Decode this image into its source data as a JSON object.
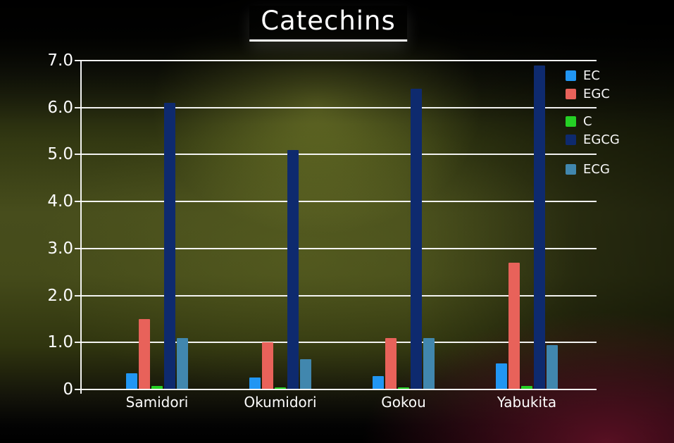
{
  "chart_data": {
    "type": "bar",
    "title": "Catechins",
    "categories": [
      "Samidori",
      "Okumidori",
      "Gokou",
      "Yabukita"
    ],
    "series": [
      {
        "name": "EC",
        "color": "#2196f3",
        "values": [
          0.35,
          0.25,
          0.28,
          0.55
        ]
      },
      {
        "name": "EGC",
        "color": "#e8625a",
        "values": [
          1.5,
          1.0,
          1.1,
          2.7
        ]
      },
      {
        "name": "C",
        "color": "#25d025",
        "values": [
          0.07,
          0.05,
          0.05,
          0.08
        ]
      },
      {
        "name": "EGCG",
        "color": "#0e2a6e",
        "values": [
          6.1,
          5.1,
          6.4,
          6.9
        ]
      },
      {
        "name": "ECG",
        "color": "#4187ae",
        "values": [
          1.1,
          0.65,
          1.1,
          0.95
        ]
      }
    ],
    "ylim": [
      0,
      7
    ],
    "yticks": [
      "0",
      "1.0",
      "2.0",
      "3.0",
      "4.0",
      "5.0",
      "6.0",
      "7.0"
    ],
    "grid": true,
    "legend_position": "right",
    "xlabel": "",
    "ylabel": ""
  },
  "colors": {
    "axis": "#fafafa",
    "text": "#ffffff",
    "background_glow": "#a8b23e",
    "background_maroon": "#70142c"
  }
}
